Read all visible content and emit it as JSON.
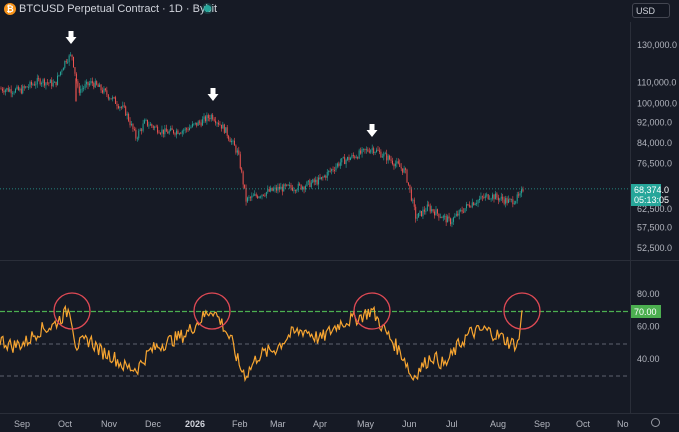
{
  "header": {
    "title": "BTCUSD Perpetual Contract · 1D · Bybit",
    "currency": "USD"
  },
  "price_axis": {
    "labels": [
      "130,000.0",
      "110,000.0",
      "100,000.0",
      "92,000.0",
      "84,000.0",
      "76,500.0",
      "62,500.0",
      "57,500.0",
      "52,500.0"
    ],
    "last_price": "68,374.0",
    "countdown": "05:13:05"
  },
  "rsi_axis": {
    "labels": [
      "80.00",
      "60.00",
      "40.00"
    ],
    "overbought_label": "70.00"
  },
  "time_axis": {
    "labels": [
      "Sep",
      "Oct",
      "Nov",
      "Dec",
      "2026",
      "Feb",
      "Mar",
      "Apr",
      "May",
      "Jun",
      "Jul",
      "Aug",
      "Sep",
      "Oct",
      "No"
    ]
  },
  "colors": {
    "up": "#26a69a",
    "down": "#ef5350",
    "rsi_line": "#f7a531",
    "overbought_line": "#4caf50",
    "highlight_circle": "#e04a55",
    "background": "#161a25"
  },
  "chart_data": [
    {
      "type": "candlestick",
      "title": "BTCUSD Perpetual Contract · 1D · Bybit",
      "x": [
        "Sep",
        "Oct",
        "Nov",
        "Dec",
        "2026",
        "Feb",
        "Mar",
        "Apr",
        "May",
        "Jun",
        "Jul",
        "Aug"
      ],
      "close_approx": [
        112000,
        124000,
        103000,
        88000,
        90000,
        72000,
        68000,
        72000,
        81000,
        63000,
        63500,
        64500
      ],
      "last_close": 68374,
      "peak_markers": [
        "Oct",
        "2026",
        "May"
      ],
      "y_scale": "log"
    },
    {
      "type": "line",
      "x": [
        "Sep",
        "Oct",
        "Nov",
        "Dec",
        "2026",
        "Feb",
        "Mar",
        "Apr",
        "May",
        "Jun",
        "Jul",
        "Aug"
      ],
      "values": [
        55,
        70,
        47,
        40,
        68,
        35,
        45,
        60,
        68,
        28,
        45,
        60
      ],
      "last_value": 70,
      "reference_lines": [
        70,
        50,
        30
      ],
      "highlighted_peaks": [
        "Oct",
        "2026",
        "May",
        "Aug"
      ]
    }
  ]
}
